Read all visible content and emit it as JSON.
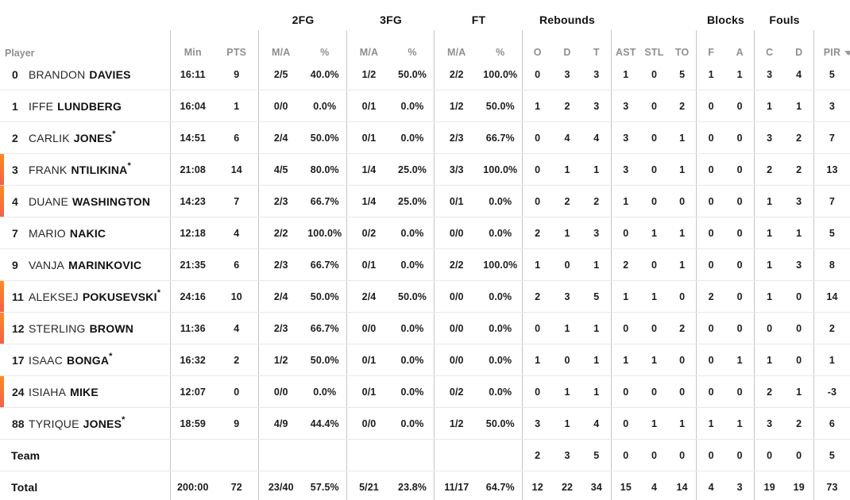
{
  "table": {
    "groups": {
      "fg2": "2FG",
      "fg3": "3FG",
      "ft": "FT",
      "rebounds": "Rebounds",
      "blocks": "Blocks",
      "fouls": "Fouls"
    },
    "columns": {
      "player": "Player",
      "min": "Min",
      "pts": "PTS",
      "ma": "M/A",
      "pct": "%",
      "o": "O",
      "d": "D",
      "t": "T",
      "ast": "AST",
      "stl": "STL",
      "to": "TO",
      "f": "F",
      "a": "A",
      "c": "C",
      "d2": "D",
      "pir": "PIR"
    },
    "sort_indicator": "descending",
    "accent_colors": {
      "on_court_marker_top": "#fd8a25",
      "on_court_marker_bottom": "#f85e49"
    },
    "rows": [
      {
        "number": "0",
        "first": "BRANDON",
        "last": "DAVIES",
        "starter_mark": "",
        "on_court": false,
        "stats": [
          "16:11",
          "9",
          "2/5",
          "40.0%",
          "1/2",
          "50.0%",
          "2/2",
          "100.0%",
          "0",
          "3",
          "3",
          "1",
          "0",
          "5",
          "1",
          "1",
          "3",
          "4",
          "5"
        ]
      },
      {
        "number": "1",
        "first": "IFFE",
        "last": "LUNDBERG",
        "starter_mark": "",
        "on_court": false,
        "stats": [
          "16:04",
          "1",
          "0/0",
          "0.0%",
          "0/1",
          "0.0%",
          "1/2",
          "50.0%",
          "1",
          "2",
          "3",
          "3",
          "0",
          "2",
          "0",
          "0",
          "1",
          "1",
          "3"
        ]
      },
      {
        "number": "2",
        "first": "CARLIK",
        "last": "JONES",
        "starter_mark": "*",
        "on_court": false,
        "stats": [
          "14:51",
          "6",
          "2/4",
          "50.0%",
          "0/1",
          "0.0%",
          "2/3",
          "66.7%",
          "0",
          "4",
          "4",
          "3",
          "0",
          "1",
          "0",
          "0",
          "3",
          "2",
          "7"
        ]
      },
      {
        "number": "3",
        "first": "FRANK",
        "last": "NTILIKINA",
        "starter_mark": "*",
        "on_court": true,
        "stats": [
          "21:08",
          "14",
          "4/5",
          "80.0%",
          "1/4",
          "25.0%",
          "3/3",
          "100.0%",
          "0",
          "1",
          "1",
          "3",
          "0",
          "1",
          "0",
          "0",
          "2",
          "2",
          "13"
        ]
      },
      {
        "number": "4",
        "first": "DUANE",
        "last": "WASHINGTON",
        "starter_mark": "",
        "on_court": true,
        "stats": [
          "14:23",
          "7",
          "2/3",
          "66.7%",
          "1/4",
          "25.0%",
          "0/1",
          "0.0%",
          "0",
          "2",
          "2",
          "1",
          "0",
          "0",
          "0",
          "0",
          "1",
          "3",
          "7"
        ]
      },
      {
        "number": "7",
        "first": "MARIO",
        "last": "NAKIC",
        "starter_mark": "",
        "on_court": false,
        "stats": [
          "12:18",
          "4",
          "2/2",
          "100.0%",
          "0/2",
          "0.0%",
          "0/0",
          "0.0%",
          "2",
          "1",
          "3",
          "0",
          "1",
          "1",
          "0",
          "0",
          "1",
          "1",
          "5"
        ]
      },
      {
        "number": "9",
        "first": "VANJA",
        "last": "MARINKOVIC",
        "starter_mark": "",
        "on_court": false,
        "stats": [
          "21:35",
          "6",
          "2/3",
          "66.7%",
          "0/1",
          "0.0%",
          "2/2",
          "100.0%",
          "1",
          "0",
          "1",
          "2",
          "0",
          "1",
          "0",
          "0",
          "1",
          "3",
          "8"
        ]
      },
      {
        "number": "11",
        "first": "ALEKSEJ",
        "last": "POKUSEVSKI",
        "starter_mark": "*",
        "on_court": true,
        "stats": [
          "24:16",
          "10",
          "2/4",
          "50.0%",
          "2/4",
          "50.0%",
          "0/0",
          "0.0%",
          "2",
          "3",
          "5",
          "1",
          "1",
          "0",
          "2",
          "0",
          "1",
          "0",
          "14"
        ]
      },
      {
        "number": "12",
        "first": "STERLING",
        "last": "BROWN",
        "starter_mark": "",
        "on_court": true,
        "stats": [
          "11:36",
          "4",
          "2/3",
          "66.7%",
          "0/0",
          "0.0%",
          "0/0",
          "0.0%",
          "0",
          "1",
          "1",
          "0",
          "0",
          "2",
          "0",
          "0",
          "0",
          "0",
          "2"
        ]
      },
      {
        "number": "17",
        "first": "ISAAC",
        "last": "BONGA",
        "starter_mark": "*",
        "on_court": false,
        "stats": [
          "16:32",
          "2",
          "1/2",
          "50.0%",
          "0/1",
          "0.0%",
          "0/0",
          "0.0%",
          "1",
          "0",
          "1",
          "1",
          "1",
          "0",
          "0",
          "1",
          "1",
          "0",
          "1"
        ]
      },
      {
        "number": "24",
        "first": "ISIAHA",
        "last": "MIKE",
        "starter_mark": "",
        "on_court": true,
        "stats": [
          "12:07",
          "0",
          "0/0",
          "0.0%",
          "0/1",
          "0.0%",
          "0/2",
          "0.0%",
          "0",
          "1",
          "1",
          "0",
          "0",
          "0",
          "0",
          "0",
          "2",
          "1",
          "-3"
        ]
      },
      {
        "number": "88",
        "first": "TYRIQUE",
        "last": "JONES",
        "starter_mark": "*",
        "on_court": false,
        "stats": [
          "18:59",
          "9",
          "4/9",
          "44.4%",
          "0/0",
          "0.0%",
          "1/2",
          "50.0%",
          "3",
          "1",
          "4",
          "0",
          "1",
          "1",
          "1",
          "1",
          "3",
          "2",
          "6"
        ]
      },
      {
        "label": "Team",
        "stats": [
          "",
          "",
          "",
          "",
          "",
          "",
          "",
          "",
          "2",
          "3",
          "5",
          "0",
          "0",
          "0",
          "0",
          "0",
          "0",
          "0",
          "5"
        ]
      },
      {
        "label": "Total",
        "stats": [
          "200:00",
          "72",
          "23/40",
          "57.5%",
          "5/21",
          "23.8%",
          "11/17",
          "64.7%",
          "12",
          "22",
          "34",
          "15",
          "4",
          "14",
          "4",
          "3",
          "19",
          "19",
          "73"
        ]
      }
    ]
  }
}
